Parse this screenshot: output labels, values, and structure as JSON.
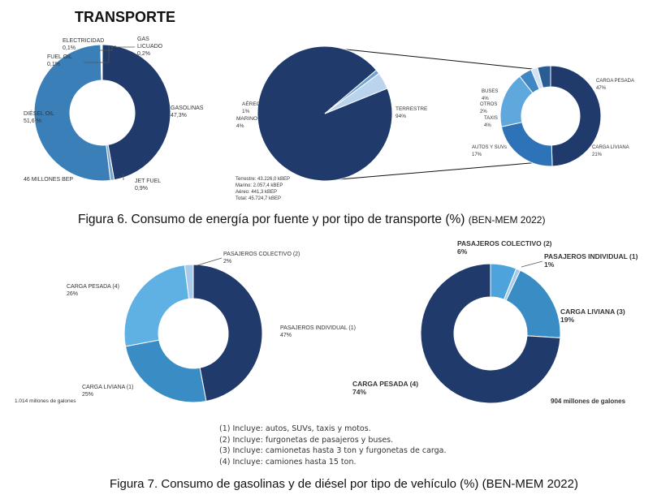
{
  "header": {
    "title": "TRANSPORTE"
  },
  "figure6": {
    "caption": "Figura 6. Consumo de energía por fuente y por tipo de transporte (%)",
    "source": "(BEN-MEM 2022)"
  },
  "figure7": {
    "caption": "Figura 7. Consumo de gasolinas y de diésel por tipo de vehículo (%) (BEN-MEM 2022)"
  },
  "notes": [
    "(1) Incluye: autos, SUVs, taxis y motos.",
    "(2) Incluye: furgonetas de pasajeros y buses.",
    "(3) Incluye: camionetas hasta 3 ton y furgonetas de carga.",
    "(4) Incluye: camiones hasta 15 ton."
  ],
  "chart_data": [
    {
      "type": "pie",
      "subtype": "donut",
      "total_label": "46 MILLONES BEP",
      "slices": [
        {
          "name": "GASOLINAS",
          "value": 47.3,
          "label": "47,3%",
          "color": "#1f3a6b"
        },
        {
          "name": "JET FUEL",
          "value": 0.9,
          "label": "0,9%",
          "color": "#7da3cf"
        },
        {
          "name": "DIÉSEL OIL",
          "value": 51.6,
          "label": "51,6 %",
          "color": "#3a7fb8"
        },
        {
          "name": "FUEL OIL",
          "value": 0.1,
          "label": "0,1%",
          "color": "#6fa3d1"
        },
        {
          "name": "ELECTRICIDAD",
          "value": 0.1,
          "label": "0,1%",
          "color": "#9cc1e3"
        },
        {
          "name": "GAS LICUADO",
          "value": 0.2,
          "label": "0,2%",
          "color": "#b9d4ec"
        }
      ]
    },
    {
      "type": "pie",
      "subtype": "pie",
      "slices": [
        {
          "name": "TERRESTRE",
          "value": 94,
          "label": "94%",
          "color": "#1f3a6b"
        },
        {
          "name": "AÉREO",
          "value": 1,
          "label": "1%",
          "color": "#6fa3d1"
        },
        {
          "name": "MARINO",
          "value": 4,
          "label": "4%",
          "color": "#b9d4ec"
        }
      ],
      "totals": [
        "Terrestre: 43.226,0 kBEP",
        "Marino: 2.057,4 kBEP",
        "Aéreo: 441,3 kBEP",
        "Total: 45.724,7 kBEP"
      ]
    },
    {
      "type": "pie",
      "subtype": "donut",
      "slices": [
        {
          "name": "CARGA PESADA",
          "value": 47,
          "label": "47%",
          "color": "#1f3a6b"
        },
        {
          "name": "CARGA LIVIANA",
          "value": 21,
          "label": "21%",
          "color": "#2e73b8"
        },
        {
          "name": "AUTOS Y SUVs",
          "value": 17,
          "label": "17%",
          "color": "#5fa8dd"
        },
        {
          "name": "TAXIS",
          "value": 4,
          "label": "4%",
          "color": "#3f86c2"
        },
        {
          "name": "OTROS",
          "value": 2,
          "label": "2%",
          "color": "#cfe3f4"
        },
        {
          "name": "BUSES",
          "value": 4,
          "label": "4%",
          "color": "#2a5d94"
        }
      ]
    },
    {
      "type": "pie",
      "subtype": "donut",
      "total_label": "1.014 millones de  galones",
      "slices": [
        {
          "name": "PASAJEROS INDIVIDUAL (1)",
          "value": 47,
          "label": "47%",
          "color": "#1f3a6b"
        },
        {
          "name": "CARGA LIVIANA (1)",
          "value": 25,
          "label": "25%",
          "color": "#3a8cc4"
        },
        {
          "name": "CARGA PESADA (4)",
          "value": 26,
          "label": "26%",
          "color": "#5fb0e3"
        },
        {
          "name": "PASAJEROS COLECTIVO (2)",
          "value": 2,
          "label": "2%",
          "color": "#a9cbea"
        }
      ]
    },
    {
      "type": "pie",
      "subtype": "donut",
      "total_label": "904 millones de galones",
      "slices": [
        {
          "name": "PASAJEROS COLECTIVO (2)",
          "value": 6,
          "label": "6%",
          "color": "#4da3dc"
        },
        {
          "name": "PASAJEROS INDIVIDUAL (1)",
          "value": 1,
          "label": "1%",
          "color": "#a9cbea"
        },
        {
          "name": "CARGA LIVIANA (3)",
          "value": 19,
          "label": "19%",
          "color": "#3a8cc4"
        },
        {
          "name": "CARGA PESADA (4)",
          "value": 74,
          "label": "74%",
          "color": "#1f3a6b"
        }
      ]
    }
  ]
}
